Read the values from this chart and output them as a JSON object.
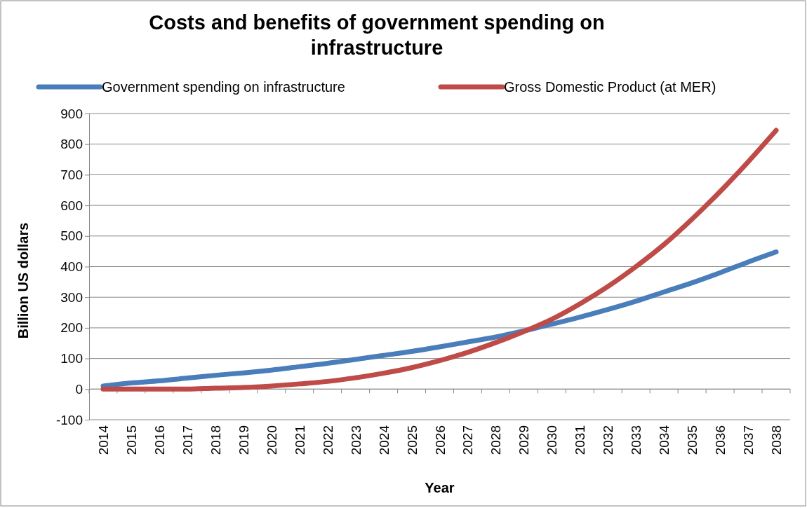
{
  "chart_data": {
    "type": "line",
    "title": "Costs and benefits of government spending on infrastructure",
    "xlabel": "Year",
    "ylabel": "Billion US dollars",
    "categories": [
      "2014",
      "2015",
      "2016",
      "2017",
      "2018",
      "2019",
      "2020",
      "2021",
      "2022",
      "2023",
      "2024",
      "2025",
      "2026",
      "2027",
      "2028",
      "2029",
      "2030",
      "2031",
      "2032",
      "2033",
      "2034",
      "2035",
      "2036",
      "2037",
      "2038"
    ],
    "series": [
      {
        "name": "Government spending on infrastructure",
        "color": "#4a7ebb",
        "values": [
          10,
          20,
          27,
          36,
          45,
          53,
          62,
          73,
          84,
          97,
          110,
          123,
          138,
          154,
          170,
          190,
          212,
          235,
          260,
          287,
          317,
          347,
          380,
          415,
          448
        ]
      },
      {
        "name": "Gross Domestic Product (at MER)",
        "color": "#be4b48",
        "values": [
          0,
          0,
          0,
          0,
          3,
          5,
          10,
          17,
          25,
          37,
          52,
          70,
          93,
          120,
          152,
          188,
          228,
          278,
          335,
          400,
          472,
          555,
          645,
          742,
          845
        ]
      }
    ],
    "ylim": [
      -100,
      900
    ],
    "yticks": [
      -100,
      0,
      100,
      200,
      300,
      400,
      500,
      600,
      700,
      800,
      900
    ],
    "grid": "y",
    "legend": "top",
    "marker": "none",
    "line_style": "solid"
  }
}
